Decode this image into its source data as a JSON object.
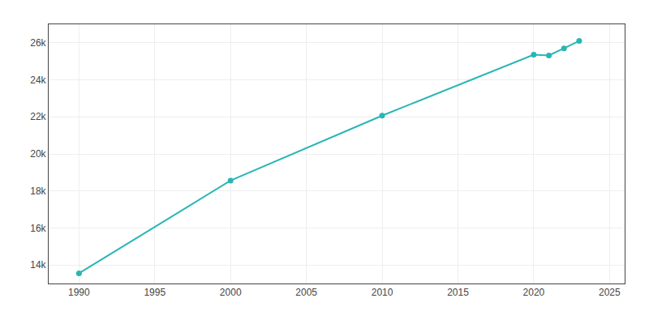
{
  "chart_data": {
    "type": "line",
    "x": [
      1990,
      2000,
      2010,
      2020,
      2021,
      2022,
      2023
    ],
    "values": [
      13550,
      18560,
      22068,
      25360,
      25320,
      25700,
      26100
    ],
    "color": "#2AB5B5",
    "marker": "circle",
    "xlim": [
      1988,
      2026
    ],
    "xticks": [
      1990,
      1995,
      2000,
      2005,
      2010,
      2015,
      2020,
      2025
    ],
    "ylim": [
      13000,
      27000
    ],
    "yticks": [
      {
        "value": 14000,
        "label": "14k"
      },
      {
        "value": 16000,
        "label": "16k"
      },
      {
        "value": 18000,
        "label": "18k"
      },
      {
        "value": 20000,
        "label": "20k"
      },
      {
        "value": 22000,
        "label": "22k"
      },
      {
        "value": 24000,
        "label": "24k"
      },
      {
        "value": 26000,
        "label": "26k"
      }
    ],
    "grid": true
  }
}
